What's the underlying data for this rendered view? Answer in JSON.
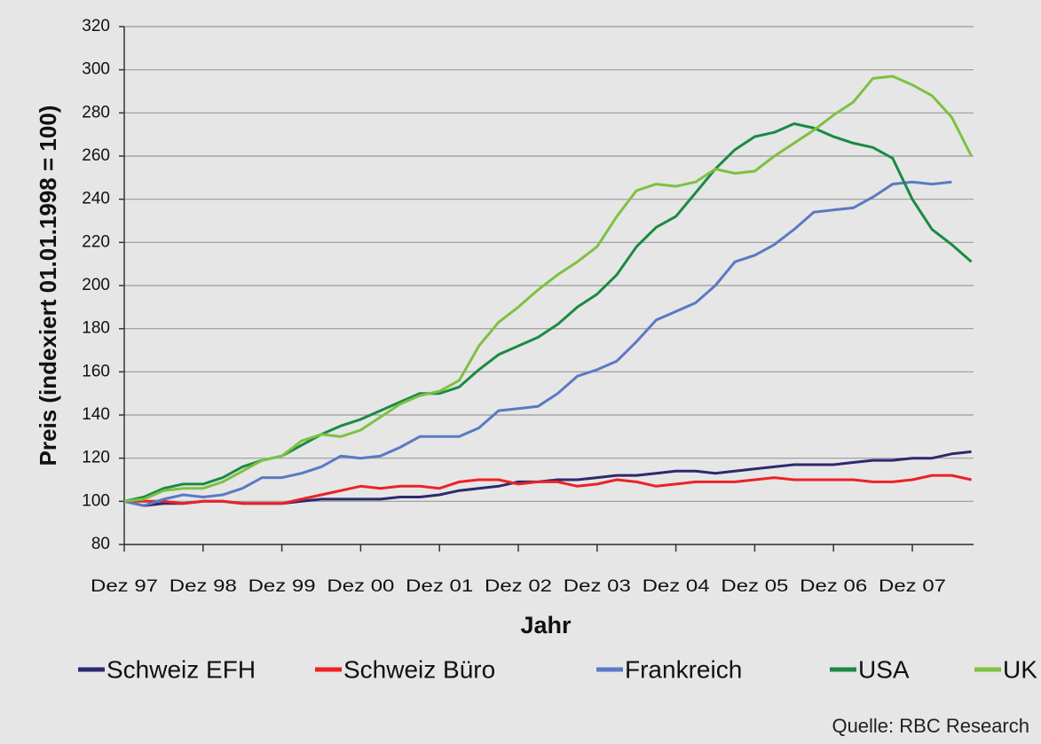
{
  "chart_data": {
    "type": "line",
    "y_label": "Preis (indexiert 01.01.1998 = 100)",
    "x_label": "Jahr",
    "source": "Quelle: RBC Research",
    "categories": [
      "Dez 97",
      null,
      null,
      null,
      "Dez 98",
      null,
      null,
      null,
      "Dez 99",
      null,
      null,
      null,
      "Dez 00",
      null,
      null,
      null,
      "Dez 01",
      null,
      null,
      null,
      "Dez 02",
      null,
      null,
      null,
      "Dez 03",
      null,
      null,
      null,
      "Dez 04",
      null,
      null,
      null,
      "Dez 05",
      null,
      null,
      null,
      "Dez 06",
      null,
      null,
      null,
      "Dez 07",
      null,
      null,
      null
    ],
    "ylim": [
      80,
      320
    ],
    "yticks": [
      80,
      100,
      120,
      140,
      160,
      180,
      200,
      220,
      240,
      260,
      280,
      300,
      320
    ],
    "grid": true,
    "series": [
      {
        "name": "Schweiz EFH",
        "color": "#2b2a6e",
        "values": [
          100,
          98,
          99,
          99,
          100,
          100,
          99,
          99,
          99,
          100,
          101,
          101,
          101,
          101,
          102,
          102,
          103,
          105,
          106,
          107,
          109,
          109,
          110,
          110,
          111,
          112,
          112,
          113,
          114,
          114,
          113,
          114,
          115,
          116,
          117,
          117,
          117,
          118,
          119,
          119,
          120,
          120,
          122,
          123
        ]
      },
      {
        "name": "Schweiz Büro",
        "color": "#ec2227",
        "values": [
          100,
          100,
          100,
          99,
          100,
          100,
          99,
          99,
          99,
          101,
          103,
          105,
          107,
          106,
          107,
          107,
          106,
          109,
          110,
          110,
          108,
          109,
          109,
          107,
          108,
          110,
          109,
          107,
          108,
          109,
          109,
          109,
          110,
          111,
          110,
          110,
          110,
          110,
          109,
          109,
          110,
          112,
          112,
          110
        ]
      },
      {
        "name": "Frankreich",
        "color": "#5b79c4",
        "values": [
          100,
          98,
          101,
          103,
          102,
          103,
          106,
          111,
          111,
          113,
          116,
          121,
          120,
          121,
          125,
          130,
          130,
          130,
          134,
          142,
          143,
          144,
          150,
          158,
          161,
          165,
          174,
          184,
          188,
          192,
          200,
          211,
          214,
          219,
          226,
          234,
          235,
          236,
          241,
          247,
          248,
          247,
          248,
          null
        ]
      },
      {
        "name": "USA",
        "color": "#1a8a45",
        "values": [
          100,
          102,
          106,
          108,
          108,
          111,
          116,
          119,
          121,
          126,
          131,
          135,
          138,
          142,
          146,
          150,
          150,
          153,
          161,
          168,
          172,
          176,
          182,
          190,
          196,
          205,
          218,
          227,
          232,
          243,
          254,
          263,
          269,
          271,
          275,
          273,
          269,
          266,
          264,
          259,
          240,
          226,
          219,
          211
        ]
      },
      {
        "name": "UK",
        "color": "#7dc142",
        "values": [
          100,
          101,
          105,
          106,
          106,
          109,
          114,
          119,
          121,
          128,
          131,
          130,
          133,
          139,
          145,
          149,
          151,
          156,
          172,
          183,
          190,
          198,
          205,
          211,
          218,
          232,
          244,
          247,
          246,
          248,
          254,
          252,
          253,
          260,
          266,
          272,
          279,
          285,
          296,
          297,
          293,
          288,
          278,
          260
        ]
      }
    ]
  }
}
